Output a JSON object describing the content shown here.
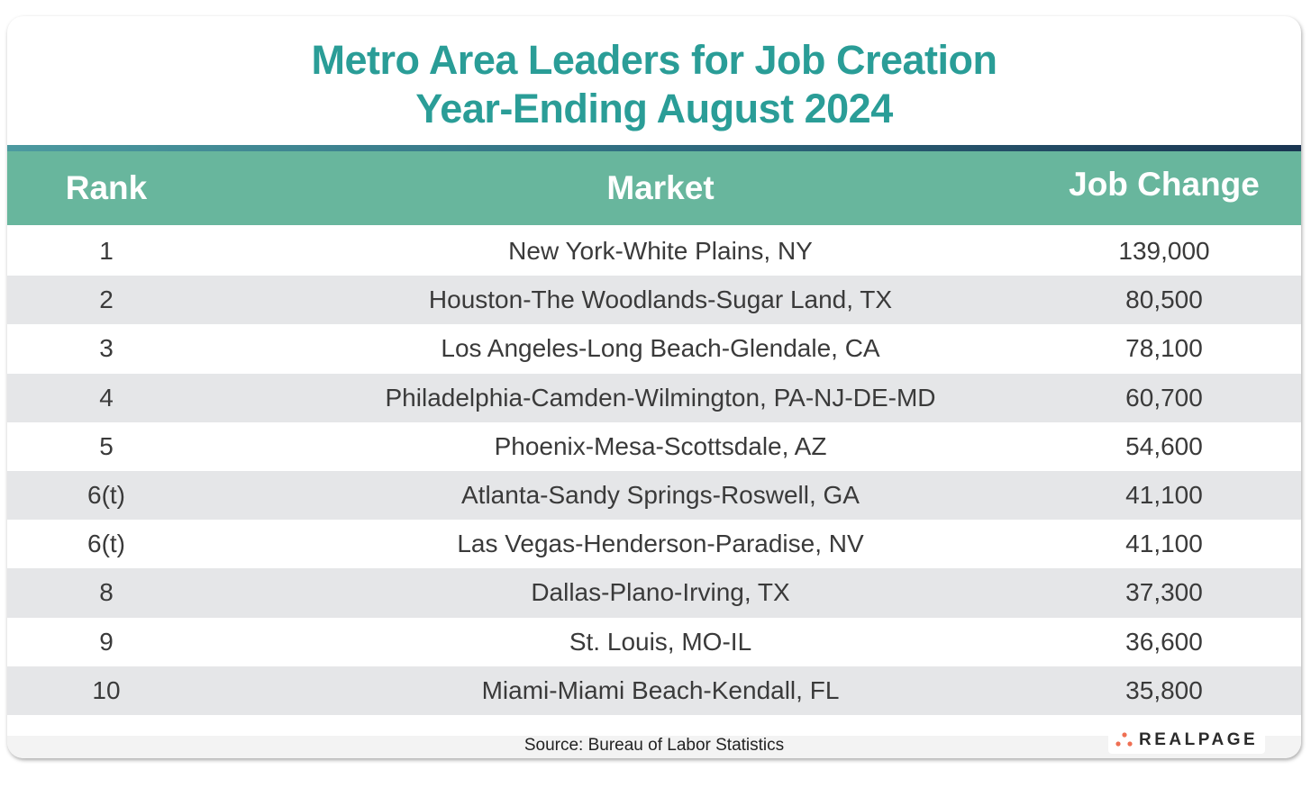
{
  "title_line1": "Metro Area Leaders for Job Creation",
  "title_line2": "Year-Ending August 2024",
  "columns": [
    "Rank",
    "Market",
    "Job Change"
  ],
  "source": "Source: Bureau of Labor Statistics",
  "logo_text": "REALPAGE",
  "colors": {
    "title": "#2a9d97",
    "header": "#68b69d",
    "stripe": "#e5e6e8",
    "logo_dots": "#ef6f53"
  },
  "chart_data": {
    "type": "table",
    "title": "Metro Area Leaders for Job Creation Year-Ending August 2024",
    "columns": [
      "Rank",
      "Market",
      "Job Change"
    ],
    "rows": [
      [
        "1",
        "New York-White Plains, NY",
        "139,000"
      ],
      [
        "2",
        "Houston-The Woodlands-Sugar Land, TX",
        "80,500"
      ],
      [
        "3",
        "Los Angeles-Long Beach-Glendale, CA",
        "78,100"
      ],
      [
        "4",
        "Philadelphia-Camden-Wilmington, PA-NJ-DE-MD",
        "60,700"
      ],
      [
        "5",
        "Phoenix-Mesa-Scottsdale, AZ",
        "54,600"
      ],
      [
        "6(t)",
        "Atlanta-Sandy Springs-Roswell, GA",
        "41,100"
      ],
      [
        "6(t)",
        "Las Vegas-Henderson-Paradise, NV",
        "41,100"
      ],
      [
        "8",
        "Dallas-Plano-Irving, TX",
        "37,300"
      ],
      [
        "9",
        "St. Louis, MO-IL",
        "36,600"
      ],
      [
        "10",
        "Miami-Miami Beach-Kendall, FL",
        "35,800"
      ]
    ]
  }
}
